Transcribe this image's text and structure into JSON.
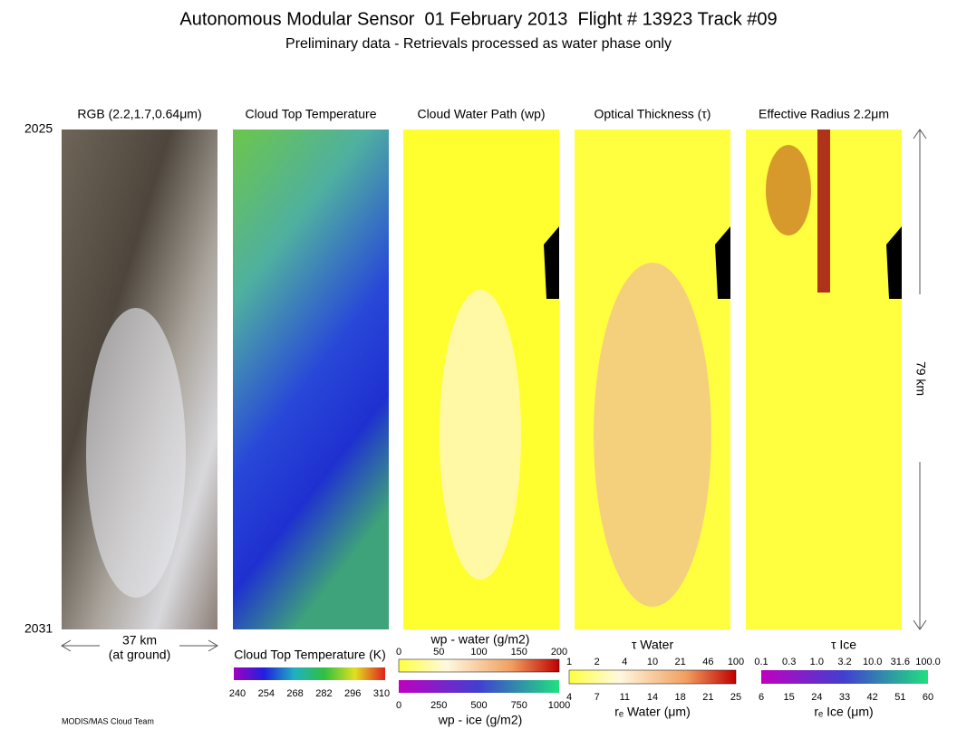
{
  "header": {
    "title": "Autonomous Modular Sensor  01 February 2013  Flight # 13923 Track #09",
    "subtitle": "Preliminary data - Retrievals processed as water phase only"
  },
  "panels": [
    {
      "title": "RGB (2.2,1.7,0.64μm)"
    },
    {
      "title": "Cloud Top Temperature"
    },
    {
      "title": "Cloud Water Path (wp)"
    },
    {
      "title": "Optical Thickness (τ)"
    },
    {
      "title": "Effective Radius 2.2μm"
    }
  ],
  "time_axis": {
    "start": "2025",
    "end": "2031"
  },
  "scale": {
    "width": "37 km",
    "width_note": "(at ground)",
    "length": "79 km"
  },
  "colorbars": {
    "temperature": {
      "label": "Cloud Top Temperature (K)",
      "ticks": [
        "240",
        "254",
        "268",
        "282",
        "296",
        "310"
      ]
    },
    "water_path": {
      "water_label": "wp - water (g/m2)",
      "water_ticks": [
        "0",
        "50",
        "100",
        "150",
        "200"
      ],
      "ice_ticks": [
        "0",
        "250",
        "500",
        "750",
        "1000"
      ],
      "ice_label": "wp - ice (g/m2)"
    },
    "optical_thickness": {
      "label": "τ Water",
      "tau_ticks": [
        "1",
        "2",
        "4",
        "10",
        "21",
        "46",
        "100"
      ],
      "re_ticks": [
        "4",
        "7",
        "11",
        "14",
        "18",
        "21",
        "25"
      ],
      "re_label": "rₑ Water (μm)"
    },
    "effective_radius": {
      "label": "τ Ice",
      "tau_ticks": [
        "0.1",
        "0.3",
        "1.0",
        "3.2",
        "10.0",
        "31.6",
        "100.0"
      ],
      "re_ticks": [
        "6",
        "15",
        "24",
        "33",
        "42",
        "51",
        "60"
      ],
      "re_label": "rₑ Ice (μm)"
    }
  },
  "footer": "MODIS/MAS Cloud Team"
}
